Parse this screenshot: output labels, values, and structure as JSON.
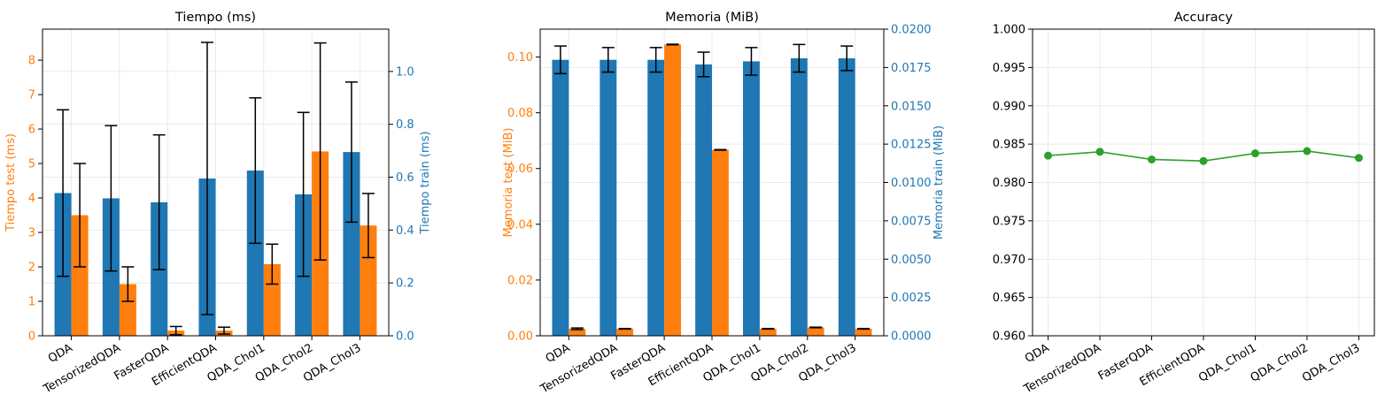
{
  "colors": {
    "test": "#ff7f0e",
    "train": "#1f77b4",
    "accuracy": "#2ca02c",
    "grid": "#e5e5e5",
    "axis": "#000000"
  },
  "chart_data": [
    {
      "type": "bar",
      "title": "Tiempo (ms)",
      "categories": [
        "QDA",
        "TensorizedQDA",
        "FasterQDA",
        "EfficientQDA",
        "QDA_Chol1",
        "QDA_Chol2",
        "QDA_Chol3"
      ],
      "ylabel_left": "Tiempo test (ms)",
      "ylabel_right": "Tiempo train (ms)",
      "ylim_left": [
        0,
        8.9
      ],
      "ylim_right": [
        0,
        1.16
      ],
      "yticks_left": [
        "0",
        "1",
        "2",
        "3",
        "4",
        "5",
        "6",
        "7",
        "8"
      ],
      "yticks_right": [
        "0.0",
        "0.2",
        "0.4",
        "0.6",
        "0.8",
        "1.0"
      ],
      "grid": true,
      "series": [
        {
          "name": "train",
          "axis": "right",
          "values": [
            0.54,
            0.52,
            0.505,
            0.595,
            0.625,
            0.535,
            0.695
          ],
          "errors": [
            0.315,
            0.275,
            0.255,
            0.515,
            0.275,
            0.31,
            0.265
          ]
        },
        {
          "name": "test",
          "axis": "left",
          "values": [
            3.5,
            1.5,
            0.15,
            0.15,
            2.08,
            5.35,
            3.2
          ],
          "errors": [
            1.5,
            0.5,
            0.12,
            0.1,
            0.58,
            3.15,
            0.93
          ]
        }
      ]
    },
    {
      "type": "bar",
      "title": "Memoria (MiB)",
      "categories": [
        "QDA",
        "TensorizedQDA",
        "FasterQDA",
        "EfficientQDA",
        "QDA_Chol1",
        "QDA_Chol2",
        "QDA_Chol3"
      ],
      "ylabel_left": "Memoria test (MiB)",
      "ylabel_right": "Memoria train (MiB)",
      "ylim_left": [
        0,
        0.11
      ],
      "ylim_right": [
        0,
        0.02
      ],
      "yticks_left": [
        "0.00",
        "0.02",
        "0.04",
        "0.06",
        "0.08",
        "0.10"
      ],
      "yticks_right": [
        "0.0000",
        "0.0025",
        "0.0050",
        "0.0075",
        "0.0100",
        "0.0125",
        "0.0150",
        "0.0175",
        "0.0200"
      ],
      "grid": true,
      "series": [
        {
          "name": "train",
          "axis": "right",
          "values": [
            0.018,
            0.018,
            0.018,
            0.0177,
            0.0179,
            0.0181,
            0.0181
          ],
          "errors": [
            0.0009,
            0.0008,
            0.0008,
            0.0008,
            0.0009,
            0.0009,
            0.0008
          ]
        },
        {
          "name": "test",
          "axis": "left",
          "values": [
            0.0025,
            0.0025,
            0.1045,
            0.0667,
            0.0025,
            0.003,
            0.0025
          ],
          "errors": [
            0.0003,
            0.0001,
            0.0001,
            0.0001,
            0.0001,
            0.0001,
            0.0001
          ]
        }
      ]
    },
    {
      "type": "line",
      "title": "Accuracy",
      "categories": [
        "QDA",
        "TensorizedQDA",
        "FasterQDA",
        "EfficientQDA",
        "QDA_Chol1",
        "QDA_Chol2",
        "QDA_Chol3"
      ],
      "ylim": [
        0.96,
        1.0
      ],
      "yticks": [
        "0.960",
        "0.965",
        "0.970",
        "0.975",
        "0.980",
        "0.985",
        "0.990",
        "0.995",
        "1.000"
      ],
      "grid": true,
      "values": [
        0.9835,
        0.984,
        0.983,
        0.9828,
        0.9838,
        0.9841,
        0.9832
      ]
    }
  ]
}
